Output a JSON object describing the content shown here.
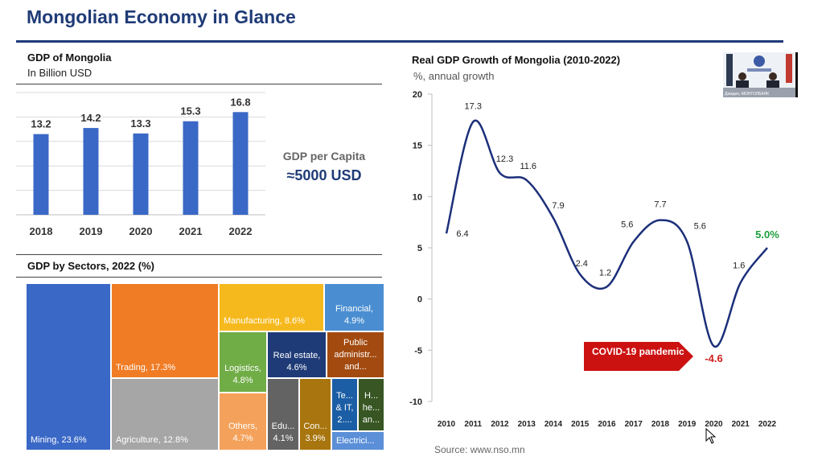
{
  "slide": {
    "title": "Mongolian Economy in Glance",
    "source": "Source: www.nso.mn"
  },
  "gdp_panel": {
    "title": "GDP of Mongolia",
    "subtitle": "In Billion USD",
    "per_capita_label": "GDP per Capita",
    "per_capita_value": "≈5000 USD"
  },
  "growth_panel": {
    "title": "Real GDP Growth of Mongolia (2010-2022)",
    "subtitle": "%, annual growth",
    "covid_label": "COVID-19 pandemic"
  },
  "sectors_panel": {
    "title": "GDP by Sectors, 2022 (%)"
  },
  "video": {
    "caption": "Дамдин, МОНГОЛБАНК"
  },
  "colors": {
    "navy": "#1f3b77",
    "bar_blue": "#3a68c6",
    "line_navy": "#1c2f7a",
    "green_label": "#1e9e3a",
    "red_label": "#d11e1e",
    "covid_red": "#cc1111"
  },
  "chart_data": [
    {
      "id": "gdp",
      "type": "bar",
      "title": "GDP of Mongolia",
      "ylabel": "In Billion USD",
      "categories": [
        "2018",
        "2019",
        "2020",
        "2021",
        "2022"
      ],
      "values": [
        13.2,
        14.2,
        13.3,
        15.3,
        16.8
      ],
      "value_labels": [
        "13.2",
        "14.2",
        "13.3",
        "15.3",
        "16.8"
      ],
      "ylim": [
        0,
        20
      ],
      "grid": true
    },
    {
      "id": "growth",
      "type": "line",
      "title": "Real GDP Growth of Mongolia (2010-2022)",
      "ylabel": "%, annual growth",
      "x": [
        "2010",
        "2011",
        "2012",
        "2013",
        "2014",
        "2015",
        "2016",
        "2017",
        "2018",
        "2019",
        "2020",
        "2021",
        "2022"
      ],
      "values": [
        6.4,
        17.3,
        12.3,
        11.6,
        7.9,
        2.4,
        1.2,
        5.6,
        7.7,
        5.6,
        -4.6,
        1.6,
        5.0
      ],
      "value_labels": [
        "6.4",
        "17.3",
        "12.3",
        "11.6",
        "7.9",
        "2.4",
        "1.2",
        "5.6",
        "7.7",
        "5.6",
        "-4.6",
        "1.6",
        "5.0%"
      ],
      "yticks": [
        "20",
        "15",
        "10",
        "5",
        "0",
        "-5",
        "-10"
      ],
      "ytick_values": [
        20,
        15,
        10,
        5,
        0,
        -5,
        -10
      ],
      "ylim": [
        -10,
        20
      ],
      "grid": false,
      "annotation": "COVID-19 pandemic"
    },
    {
      "id": "sectors",
      "type": "treemap",
      "title": "GDP by Sectors, 2022 (%)",
      "items": [
        {
          "label": "Mining, 23.6%",
          "value": 23.6
        },
        {
          "label": "Trading, 17.3%",
          "value": 17.3
        },
        {
          "label": "Agriculture, 12.8%",
          "value": 12.8
        },
        {
          "label": "Manufacturing, 8.6%",
          "value": 8.6
        },
        {
          "label": "Financial, 4.9%",
          "value": 4.9
        },
        {
          "label": "Logistics, 4.8%",
          "value": 4.8
        },
        {
          "label": "Real estate, 4.6%",
          "value": 4.6
        },
        {
          "label": "Public administr... and...",
          "value": null
        },
        {
          "label": "Others, 4.7%",
          "value": 4.7
        },
        {
          "label": "Edu... 4.1%",
          "value": 4.1
        },
        {
          "label": "Con... 3.9%",
          "value": 3.9
        },
        {
          "label": "Te... & IT, 2....",
          "value": null
        },
        {
          "label": "H... he... an...",
          "value": null
        },
        {
          "label": "Electrici...",
          "value": null
        }
      ]
    }
  ]
}
